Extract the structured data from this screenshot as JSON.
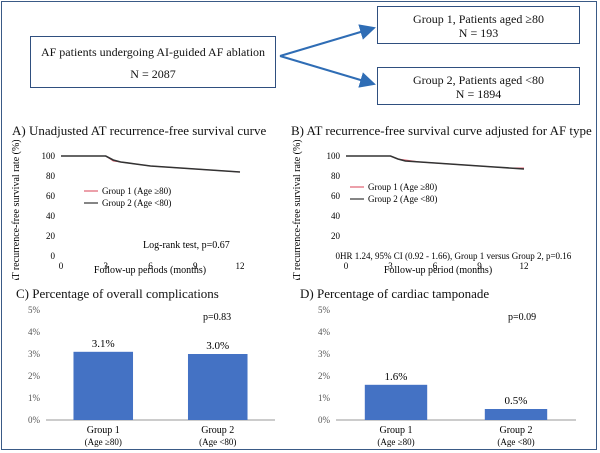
{
  "flow": {
    "root": {
      "line1": "AF patients undergoing AI-guided AF ablation",
      "line2": "N = 2087"
    },
    "group1": {
      "line1": "Group 1, Patients aged ≥80",
      "line2": "N = 193"
    },
    "group2": {
      "line1": "Group 2, Patients aged <80",
      "line2": "N = 1894"
    }
  },
  "panels": {
    "a": {
      "title": "A)  Unadjusted AT recurrence-free survival curve",
      "note": "Log-rank test, p=0.67"
    },
    "b": {
      "title": "B) AT recurrence-free survival curve adjusted for AF type",
      "note": "HR 1.24, 95% CI (0.92 - 1.66), Group 1 versus Group 2, p=0.16"
    },
    "c": {
      "title": "C)      Percentage of overall complications",
      "pvalue": "p=0.83"
    },
    "d": {
      "title": "D)      Percentage of cardiac tamponade",
      "pvalue": "p=0.09"
    }
  },
  "chart_data": [
    {
      "id": "A",
      "type": "line",
      "xlabel": "Follow-up periods (months)",
      "ylabel": "AT recurrence-free survival rate (%)",
      "xticks": [
        "0",
        "3",
        "6",
        "9",
        "12"
      ],
      "yticks": [
        "0",
        "20",
        "40",
        "60",
        "80",
        "100"
      ],
      "xlim": [
        0,
        12
      ],
      "ylim": [
        0,
        100
      ],
      "series": [
        {
          "name": "Group 1 (Age ≥80)",
          "color": "#e06070",
          "x": [
            0,
            3,
            3.5,
            4,
            5,
            6,
            7,
            8,
            9,
            10,
            11,
            12
          ],
          "y": [
            100,
            100,
            95,
            94,
            92,
            90,
            89,
            88,
            87,
            86,
            85,
            84
          ]
        },
        {
          "name": "Group 2 (Age <80)",
          "color": "#333333",
          "x": [
            0,
            3,
            3.5,
            4,
            5,
            6,
            7,
            8,
            9,
            10,
            11,
            12
          ],
          "y": [
            100,
            100,
            96,
            94,
            92,
            90,
            89,
            88,
            87,
            86,
            85,
            84
          ]
        }
      ]
    },
    {
      "id": "B",
      "type": "line",
      "xlabel": "Follow-up period (months)",
      "ylabel": "AT recurrence-free survival rate (%)",
      "xticks": [
        "0",
        "3",
        "6",
        "9",
        "12"
      ],
      "yticks": [
        "0",
        "20",
        "40",
        "60",
        "80",
        "100"
      ],
      "xlim": [
        0,
        12
      ],
      "ylim": [
        0,
        100
      ],
      "series": [
        {
          "name": "Group 1 (Age ≥80)",
          "color": "#e06070",
          "x": [
            0,
            3,
            3.5,
            4,
            5,
            6,
            7,
            8,
            9,
            10,
            11,
            12
          ],
          "y": [
            100,
            100,
            97,
            96,
            94,
            93,
            92,
            91,
            90,
            89,
            88,
            88
          ]
        },
        {
          "name": "Group 2 (Age <80)",
          "color": "#333333",
          "x": [
            0,
            3,
            3.5,
            4,
            5,
            6,
            7,
            8,
            9,
            10,
            11,
            12
          ],
          "y": [
            100,
            100,
            97,
            95,
            94,
            93,
            92,
            91,
            90,
            89,
            88,
            87
          ]
        }
      ]
    },
    {
      "id": "C",
      "type": "bar",
      "categories": [
        "Group 1",
        "Group 2"
      ],
      "sublabels": [
        "(Age ≥80)",
        "(Age <80)"
      ],
      "values": [
        3.1,
        3.0
      ],
      "value_labels": [
        "3.1%",
        "3.0%"
      ],
      "yticks": [
        "0%",
        "1%",
        "2%",
        "3%",
        "4%",
        "5%"
      ],
      "ylim": [
        0,
        5
      ],
      "color": "#4472c4"
    },
    {
      "id": "D",
      "type": "bar",
      "categories": [
        "Group 1",
        "Group 2"
      ],
      "sublabels": [
        "(Age ≥80)",
        "(Age <80)"
      ],
      "values": [
        1.6,
        0.5
      ],
      "value_labels": [
        "1.6%",
        "0.5%"
      ],
      "yticks": [
        "0%",
        "1%",
        "2%",
        "3%",
        "4%",
        "5%"
      ],
      "ylim": [
        0,
        5
      ],
      "color": "#4472c4"
    }
  ]
}
